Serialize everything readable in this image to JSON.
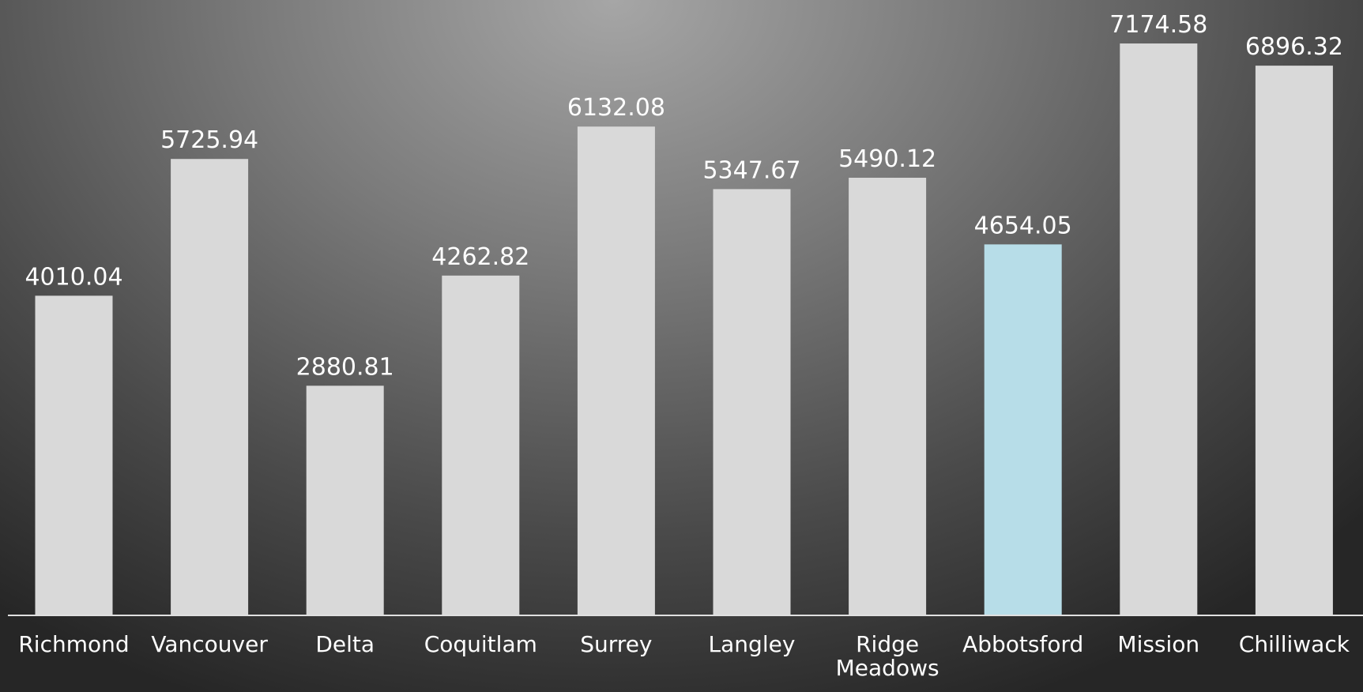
{
  "chart_data": {
    "type": "bar",
    "categories": [
      "Richmond",
      "Vancouver",
      "Delta",
      "Coquitlam",
      "Surrey",
      "Langley",
      "Ridge Meadows",
      "Abbotsford",
      "Mission",
      "Chilliwack"
    ],
    "values": [
      4010.04,
      5725.94,
      2880.81,
      4262.82,
      6132.08,
      5347.67,
      5490.12,
      4654.05,
      7174.58,
      6896.32
    ],
    "colors": [
      "#d9d9d9",
      "#d9d9d9",
      "#d9d9d9",
      "#d9d9d9",
      "#d9d9d9",
      "#d9d9d9",
      "#d9d9d9",
      "#b7dde8",
      "#d9d9d9",
      "#d9d9d9"
    ],
    "ylim": [
      0,
      7720
    ]
  }
}
